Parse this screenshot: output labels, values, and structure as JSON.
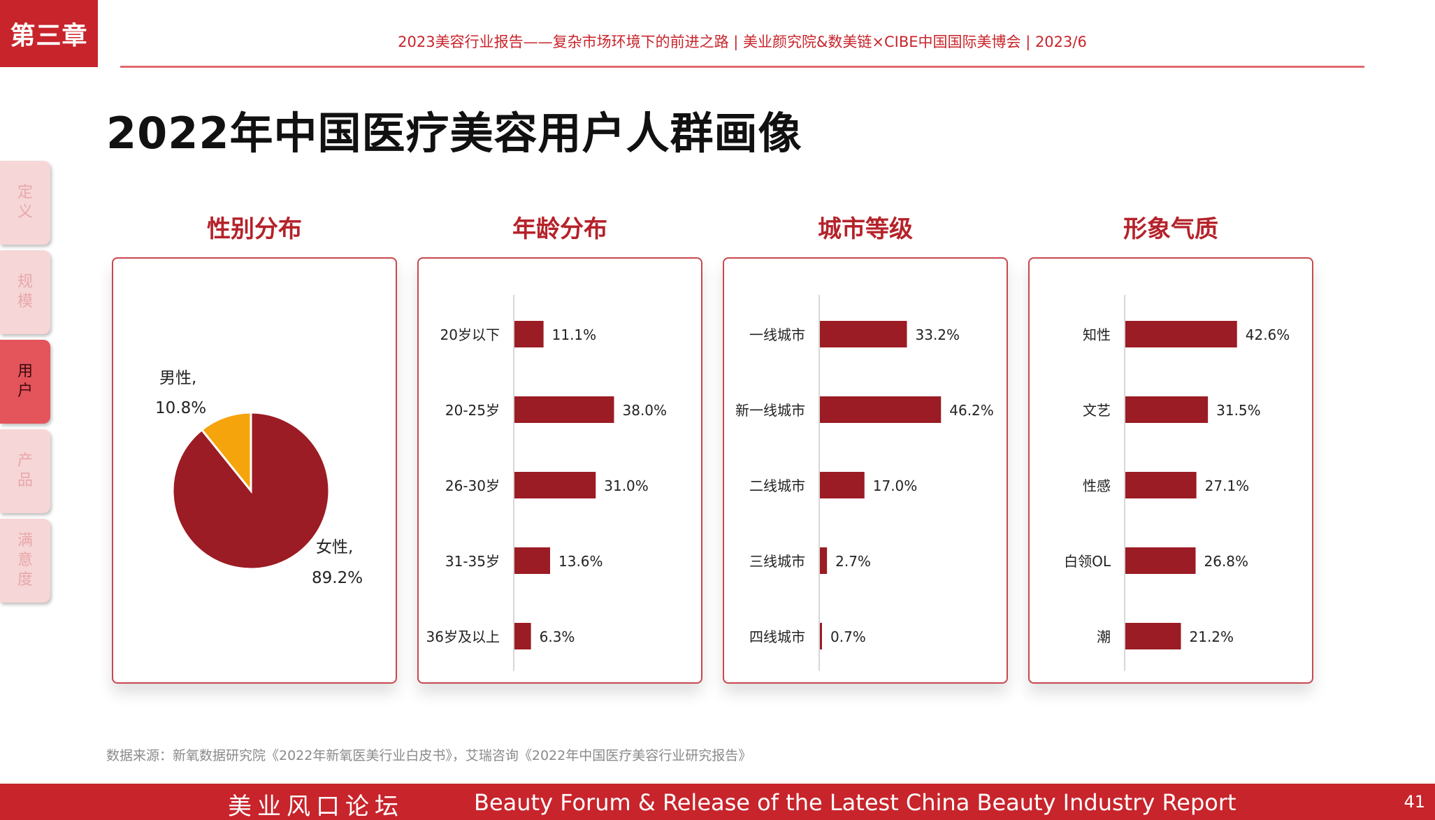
{
  "chapter": "第三章",
  "header_text": "2023美容行业报告——复杂市场环境下的前进之路  |  美业颜究院&数美链×CIBE中国国际美博会  |  2023/6",
  "title": "2022年中国医疗美容用户人群画像",
  "side_tabs": [
    {
      "label": "定义",
      "active": false
    },
    {
      "label": "规模",
      "active": false
    },
    {
      "label": "用户",
      "active": true
    },
    {
      "label": "产品",
      "active": false
    },
    {
      "label": "满意度",
      "active": false
    }
  ],
  "source_note": "数据来源：新氧数据研究院《2022年新氧医美行业白皮书》，艾瑞咨询《2022年中国医疗美容行业研究报告》",
  "footer": {
    "cn": "美业风口论坛",
    "en": "Beauty Forum & Release of the Latest China Beauty Industry Report",
    "page": "41"
  },
  "colors": {
    "bar": "#9b1c24",
    "pie_female": "#9b1c24",
    "pie_male": "#f5a40c",
    "accent": "#c8242b"
  },
  "chart_data": [
    {
      "type": "pie",
      "title": "性别分布",
      "slices": [
        {
          "label": "男性,",
          "value": 10.8,
          "value_label": "10.8%"
        },
        {
          "label": "女性,",
          "value": 89.2,
          "value_label": "89.2%"
        }
      ]
    },
    {
      "type": "bar",
      "orientation": "horizontal",
      "title": "年龄分布",
      "categories": [
        "20岁以下",
        "20-25岁",
        "26-30岁",
        "31-35岁",
        "36岁及以上"
      ],
      "values": [
        11.1,
        38.0,
        31.0,
        13.6,
        6.3
      ],
      "value_labels": [
        "11.1%",
        "38.0%",
        "31.0%",
        "13.6%",
        "6.3%"
      ]
    },
    {
      "type": "bar",
      "orientation": "horizontal",
      "title": "城市等级",
      "categories": [
        "一线城市",
        "新一线城市",
        "二线城市",
        "三线城市",
        "四线城市"
      ],
      "values": [
        33.2,
        46.2,
        17.0,
        2.7,
        0.7
      ],
      "value_labels": [
        "33.2%",
        "46.2%",
        "17.0%",
        "2.7%",
        "0.7%"
      ]
    },
    {
      "type": "bar",
      "orientation": "horizontal",
      "title": "形象气质",
      "categories": [
        "知性",
        "文艺",
        "性感",
        "白领OL",
        "潮"
      ],
      "values": [
        42.6,
        31.5,
        27.1,
        26.8,
        21.2
      ],
      "value_labels": [
        "42.6%",
        "31.5%",
        "27.1%",
        "26.8%",
        "21.2%"
      ]
    }
  ]
}
